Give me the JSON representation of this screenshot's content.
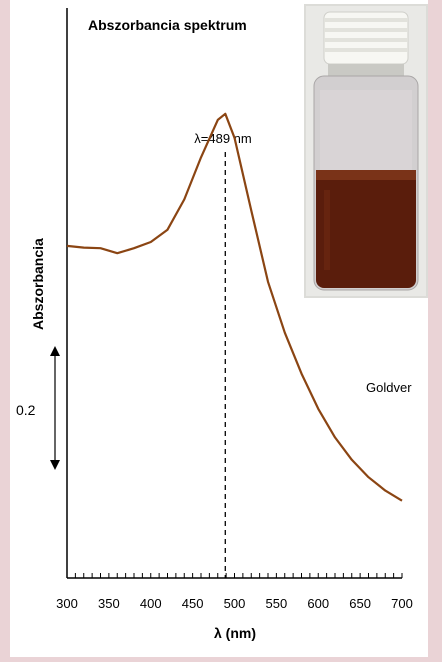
{
  "chart_data": {
    "type": "line",
    "title": "Abszorbancia spektrum",
    "xlabel": "λ (nm)",
    "ylabel": "Abszorbancia",
    "xlim": [
      300,
      700
    ],
    "x_ticks": [
      "300",
      "350",
      "400",
      "450",
      "500",
      "550",
      "600",
      "650",
      "700"
    ],
    "scale_bar_label": "0.2",
    "peak_annotation": "λ=489 nm",
    "peak_x": 489,
    "series": [
      {
        "name": "Goldver",
        "color": "#8b4513",
        "x": [
          300,
          320,
          340,
          360,
          380,
          400,
          420,
          440,
          460,
          480,
          489,
          500,
          520,
          540,
          560,
          580,
          600,
          620,
          640,
          660,
          680,
          700
        ],
        "y": [
          0.593,
          0.59,
          0.589,
          0.58,
          0.589,
          0.6,
          0.622,
          0.676,
          0.751,
          0.818,
          0.829,
          0.786,
          0.656,
          0.529,
          0.438,
          0.365,
          0.302,
          0.251,
          0.211,
          0.18,
          0.156,
          0.138
        ]
      }
    ]
  },
  "inset_photo": {
    "description_icon": "vial-photo"
  },
  "colors": {
    "curve": "#8b4513",
    "axis": "#000000",
    "background": "#ead3d6"
  }
}
